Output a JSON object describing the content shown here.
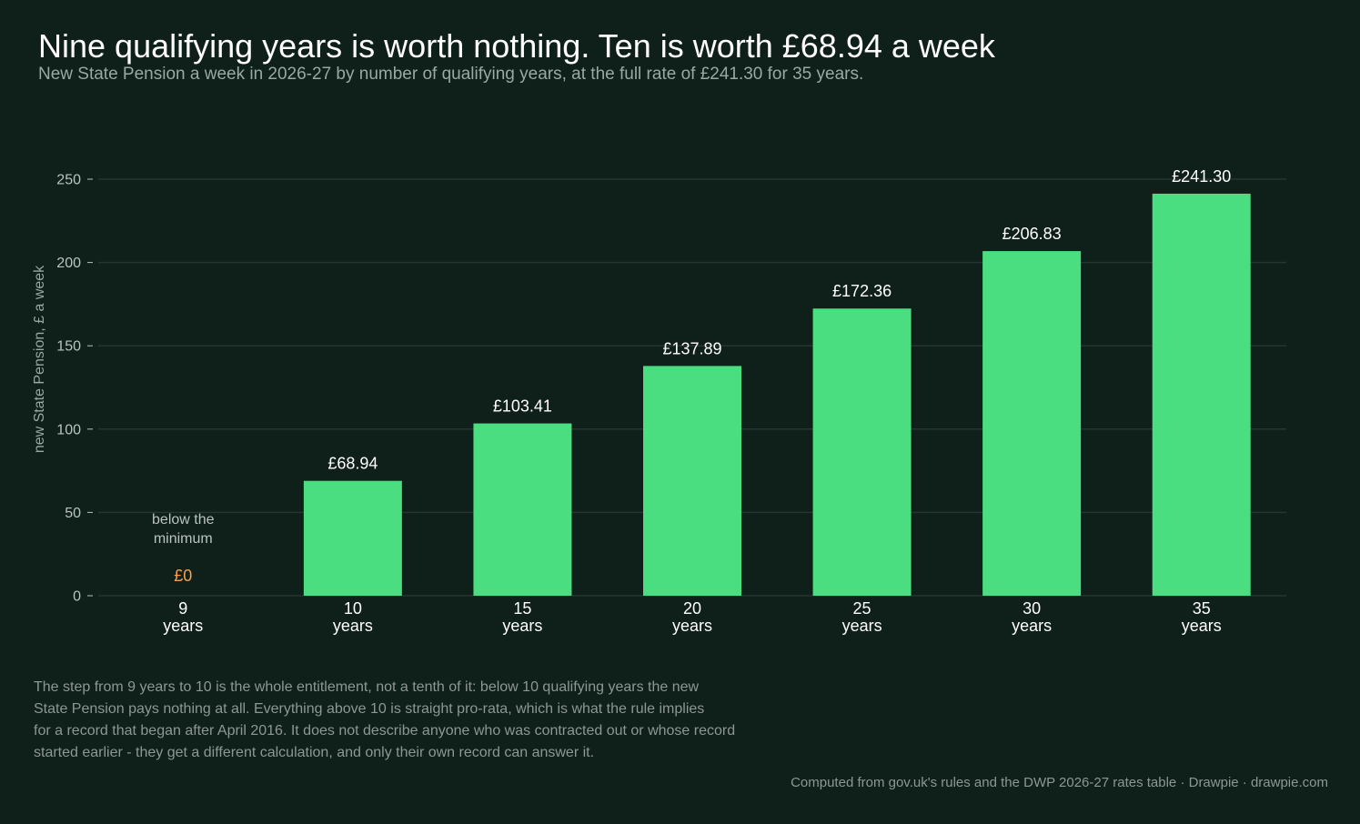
{
  "title": "Nine qualifying years is worth nothing. Ten is worth £68.94 a week",
  "subtitle": "New State Pension a week in 2026-27 by number of qualifying years, at the full rate of £241.30 for 35 years.",
  "chart_data": {
    "type": "bar",
    "ylabel": "new State Pension, £ a week",
    "ylim": [
      0,
      250
    ],
    "yticks": [
      0,
      50,
      100,
      150,
      200,
      250
    ],
    "grid": true,
    "categories": [
      [
        "9",
        "years"
      ],
      [
        "10",
        "years"
      ],
      [
        "15",
        "years"
      ],
      [
        "20",
        "years"
      ],
      [
        "25",
        "years"
      ],
      [
        "30",
        "years"
      ],
      [
        "35",
        "years"
      ]
    ],
    "values": [
      0,
      68.94,
      103.41,
      137.89,
      172.36,
      206.83,
      241.3
    ],
    "labels": [
      "£0",
      "£68.94",
      "£103.41",
      "£137.89",
      "£172.36",
      "£206.83",
      "£241.30"
    ],
    "annotation": [
      "below the",
      "minimum"
    ],
    "colors": {
      "bar": "#4ade80",
      "zero_label": "#f5a04a",
      "value_label": "#ffffff",
      "axis_text": "#b9c4bf",
      "grid": "#26352f",
      "annotation": "#b9c4bf"
    }
  },
  "note_lines": [
    "The step from 9 years to 10 is the whole entitlement, not a tenth of it: below 10 qualifying years the new",
    "State Pension pays nothing at all. Everything above 10 is straight pro-rata, which is what the rule implies",
    "for a record that began after April 2016. It does not describe anyone who was contracted out or whose record",
    "started earlier - they get a different calculation, and only their own record can answer it."
  ],
  "footer": "Computed from gov.uk's rules and the DWP 2026-27 rates table  ·  Drawpie · drawpie.com"
}
